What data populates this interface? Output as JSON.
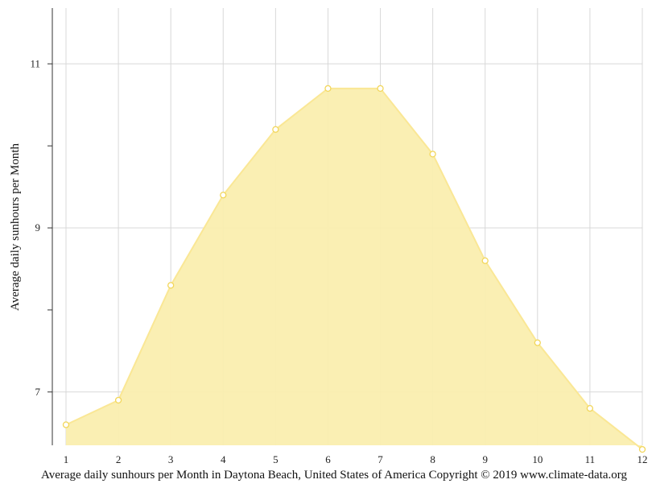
{
  "chart_data": {
    "type": "area",
    "x": [
      1,
      2,
      3,
      4,
      5,
      6,
      7,
      8,
      9,
      10,
      11,
      12
    ],
    "series": [
      {
        "values": [
          6.6,
          6.9,
          8.3,
          9.4,
          10.2,
          10.7,
          10.7,
          9.9,
          8.6,
          7.6,
          6.8,
          6.3
        ]
      }
    ],
    "xlabel": "",
    "ylabel": "Average daily sunhours per Month",
    "x_ticks": [
      "1",
      "2",
      "3",
      "4",
      "5",
      "6",
      "7",
      "8",
      "9",
      "10",
      "11",
      "12"
    ],
    "y_ticks": [
      "7",
      "9",
      "11"
    ],
    "y_minor_ticks": [
      8,
      10
    ],
    "ylim": [
      6.35,
      11.68
    ],
    "grid": true,
    "legend": "none",
    "colors": {
      "fill": "#faeeaf",
      "line": "#fae795",
      "marker_stroke": "#f2d65a",
      "grid": "#d8d8d8"
    }
  },
  "caption": "Average daily sunhours per Month in Daytona Beach, United States of America Copyright © 2019 www.climate-data.org"
}
